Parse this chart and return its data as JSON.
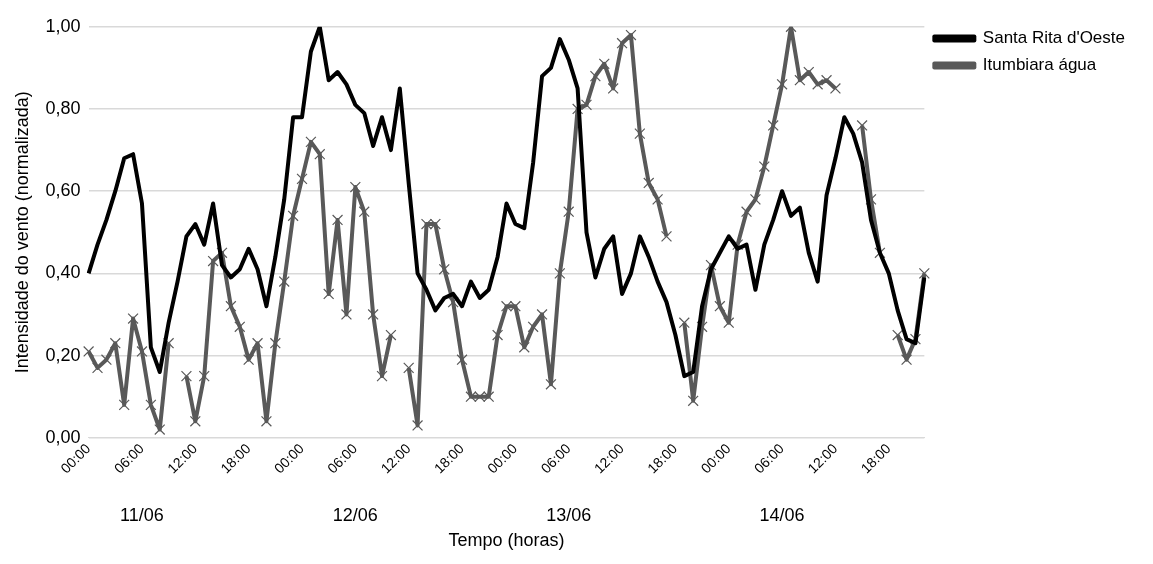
{
  "chart_data": {
    "type": "line",
    "xlabel": "Tempo (horas)",
    "ylabel": "Intensidade do vento (normalizada)",
    "categories": [
      "00:00",
      null,
      null,
      null,
      null,
      null,
      "06:00",
      null,
      null,
      null,
      null,
      null,
      "12:00",
      null,
      null,
      null,
      null,
      null,
      "18:00",
      null,
      null,
      null,
      null,
      null,
      "00:00",
      null,
      null,
      null,
      null,
      null,
      "06:00",
      null,
      null,
      null,
      null,
      null,
      "12:00",
      null,
      null,
      null,
      null,
      null,
      "18:00",
      null,
      null,
      null,
      null,
      null,
      "00:00",
      null,
      null,
      null,
      null,
      null,
      "06:00",
      null,
      null,
      null,
      null,
      null,
      "12:00",
      null,
      null,
      null,
      null,
      null,
      "18:00",
      null,
      null,
      null,
      null,
      null,
      "00:00",
      null,
      null,
      null,
      null,
      null,
      "06:00",
      null,
      null,
      null,
      null,
      null,
      "12:00",
      null,
      null,
      null,
      null,
      null,
      "18:00",
      null,
      null,
      null,
      null
    ],
    "series": [
      {
        "name": "Santa Rita d'Oeste",
        "color": "#000000",
        "marker": "none",
        "values": [
          0.4,
          0.47,
          0.53,
          0.6,
          0.68,
          0.69,
          0.57,
          0.22,
          0.16,
          0.28,
          0.38,
          0.49,
          0.52,
          0.47,
          0.57,
          0.42,
          0.39,
          0.41,
          0.46,
          0.41,
          0.32,
          0.44,
          0.58,
          0.78,
          0.78,
          0.94,
          1.0,
          0.87,
          0.89,
          0.86,
          0.81,
          0.79,
          0.71,
          0.78,
          0.7,
          0.85,
          0.62,
          0.4,
          0.36,
          0.31,
          0.34,
          0.35,
          0.32,
          0.38,
          0.34,
          0.36,
          0.44,
          0.57,
          0.52,
          0.51,
          0.67,
          0.88,
          0.9,
          0.97,
          0.92,
          0.85,
          0.5,
          0.39,
          0.46,
          0.49,
          0.35,
          0.4,
          0.49,
          0.44,
          0.38,
          0.33,
          0.25,
          0.15,
          0.16,
          0.32,
          0.41,
          0.45,
          0.49,
          0.46,
          0.47,
          0.36,
          0.47,
          0.53,
          0.6,
          0.54,
          0.56,
          0.45,
          0.38,
          0.59,
          0.68,
          0.78,
          0.74,
          0.67,
          0.53,
          0.45,
          0.4,
          0.31,
          0.24,
          0.23,
          0.39
        ]
      },
      {
        "name": "Itumbiara água",
        "color": "#595959",
        "marker": "cross",
        "values": [
          0.21,
          0.17,
          0.19,
          0.23,
          0.08,
          0.29,
          0.21,
          0.08,
          0.02,
          0.23,
          null,
          0.15,
          0.04,
          0.15,
          0.43,
          0.45,
          0.32,
          0.27,
          0.19,
          0.23,
          0.04,
          0.23,
          0.38,
          0.54,
          0.63,
          0.72,
          0.69,
          0.35,
          0.53,
          0.3,
          0.61,
          0.55,
          0.3,
          0.15,
          0.25,
          null,
          0.17,
          0.03,
          0.52,
          0.52,
          0.41,
          0.33,
          0.19,
          0.1,
          0.1,
          0.1,
          0.25,
          0.32,
          0.32,
          0.22,
          0.27,
          0.3,
          0.13,
          0.4,
          0.55,
          0.8,
          0.81,
          0.88,
          0.91,
          0.85,
          0.96,
          0.98,
          0.74,
          0.62,
          0.58,
          0.49,
          null,
          0.28,
          0.09,
          0.27,
          0.42,
          0.32,
          0.28,
          0.47,
          0.55,
          0.58,
          0.66,
          0.76,
          0.86,
          1.0,
          0.87,
          0.89,
          0.86,
          0.87,
          0.85,
          null,
          null,
          0.76,
          0.58,
          0.45,
          null,
          0.25,
          0.19,
          0.24,
          0.4
        ]
      }
    ],
    "annotations": [
      "11/06",
      "12/06",
      "13/06",
      "14/06"
    ],
    "ylim": [
      0,
      1.0
    ],
    "yticks": [
      {
        "value": 0,
        "label": "0,00"
      },
      {
        "value": 0.2,
        "label": "0,20"
      },
      {
        "value": 0.4,
        "label": "0,40"
      },
      {
        "value": 0.6,
        "label": "0,60"
      },
      {
        "value": 0.8,
        "label": "0,80"
      },
      {
        "value": 1.0,
        "label": "1,00"
      }
    ],
    "grid": "y",
    "legend": "right"
  }
}
